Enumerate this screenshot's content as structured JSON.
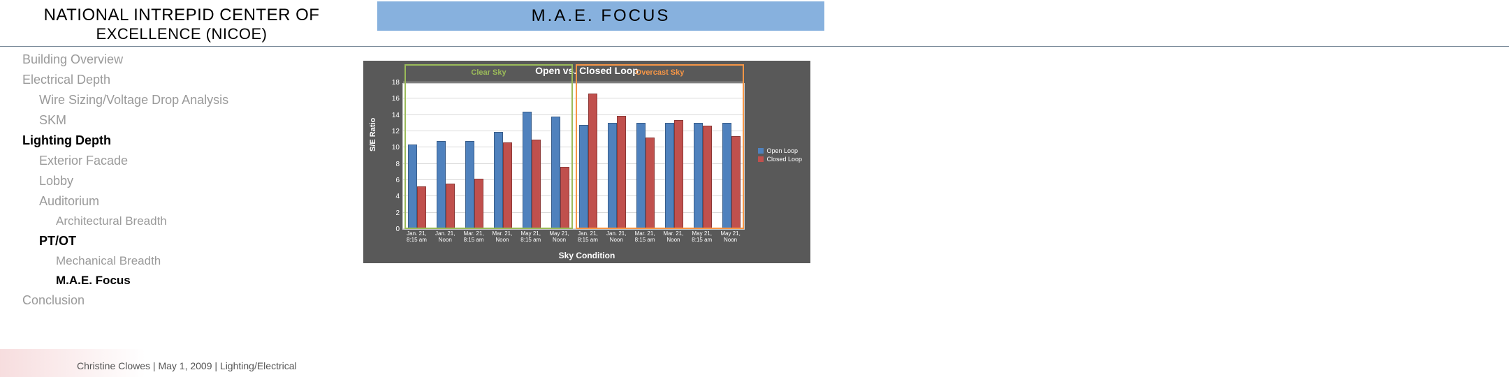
{
  "header": {
    "title_line1": "NATIONAL INTREPID CENTER OF",
    "title_line2": "EXCELLENCE (NICOE)",
    "focus_banner": "M.A.E.  FOCUS"
  },
  "nav": {
    "items": [
      {
        "label": "Building Overview",
        "indent": 0,
        "bold": false
      },
      {
        "label": "Electrical Depth",
        "indent": 0,
        "bold": false
      },
      {
        "label": "Wire Sizing/Voltage Drop Analysis",
        "indent": 1,
        "bold": false
      },
      {
        "label": "SKM",
        "indent": 1,
        "bold": false
      },
      {
        "label": "Lighting Depth",
        "indent": 0,
        "bold": true
      },
      {
        "label": "Exterior Facade",
        "indent": 1,
        "bold": false
      },
      {
        "label": "Lobby",
        "indent": 1,
        "bold": false
      },
      {
        "label": "Auditorium",
        "indent": 1,
        "bold": false
      },
      {
        "label": "Architectural Breadth",
        "indent": 2,
        "bold": false
      },
      {
        "label": "PT/OT",
        "indent": 1,
        "bold": true
      },
      {
        "label": "Mechanical Breadth",
        "indent": 2,
        "bold": false
      },
      {
        "label": "M.A.E. Focus",
        "indent": 2,
        "bold": true
      },
      {
        "label": "Conclusion",
        "indent": 0,
        "bold": false
      }
    ]
  },
  "chart": {
    "type": "bar",
    "title": "Open vs. Closed Loop",
    "ylabel": "S/E Ratio",
    "xlabel": "Sky Condition",
    "ylim": [
      0,
      18
    ],
    "ytick_step": 2,
    "background_color": "#595959",
    "plot_bg": "#ffffff",
    "grid_color": "#d9d9d9",
    "series_colors": {
      "open": "#4f81bd",
      "closed": "#c0504d"
    },
    "box_colors": {
      "clear": "#9bbb59",
      "overcast": "#f79646"
    },
    "box_labels": {
      "clear": "Clear Sky",
      "overcast": "Overcast Sky"
    },
    "categories": [
      "Jan. 21, 8:15 am",
      "Jan. 21, Noon",
      "Mar. 21, 8:15 am",
      "Mar. 21, Noon",
      "May 21, 8:15 am",
      "May 21, Noon",
      "Jan. 21, 8:15 am",
      "Jan. 21, Noon",
      "Mar. 21, 8:15 am",
      "Mar. 21, Noon",
      "May 21, 8:15 am",
      "May 21, Noon"
    ],
    "open_values": [
      10.4,
      10.8,
      10.8,
      11.9,
      14.4,
      13.8,
      12.8,
      13.0,
      13.0,
      13.0,
      13.0,
      13.0
    ],
    "closed_values": [
      5.2,
      5.6,
      6.2,
      10.6,
      11.0,
      7.6,
      16.6,
      13.9,
      11.2,
      13.4,
      12.7,
      11.4
    ],
    "legend": [
      {
        "label": "Open Loop",
        "color": "#4f81bd"
      },
      {
        "label": "Closed Loop",
        "color": "#c0504d"
      }
    ]
  },
  "footer": {
    "text": "Christine Clowes  |  May 1, 2009   |   Lighting/Electrical"
  }
}
